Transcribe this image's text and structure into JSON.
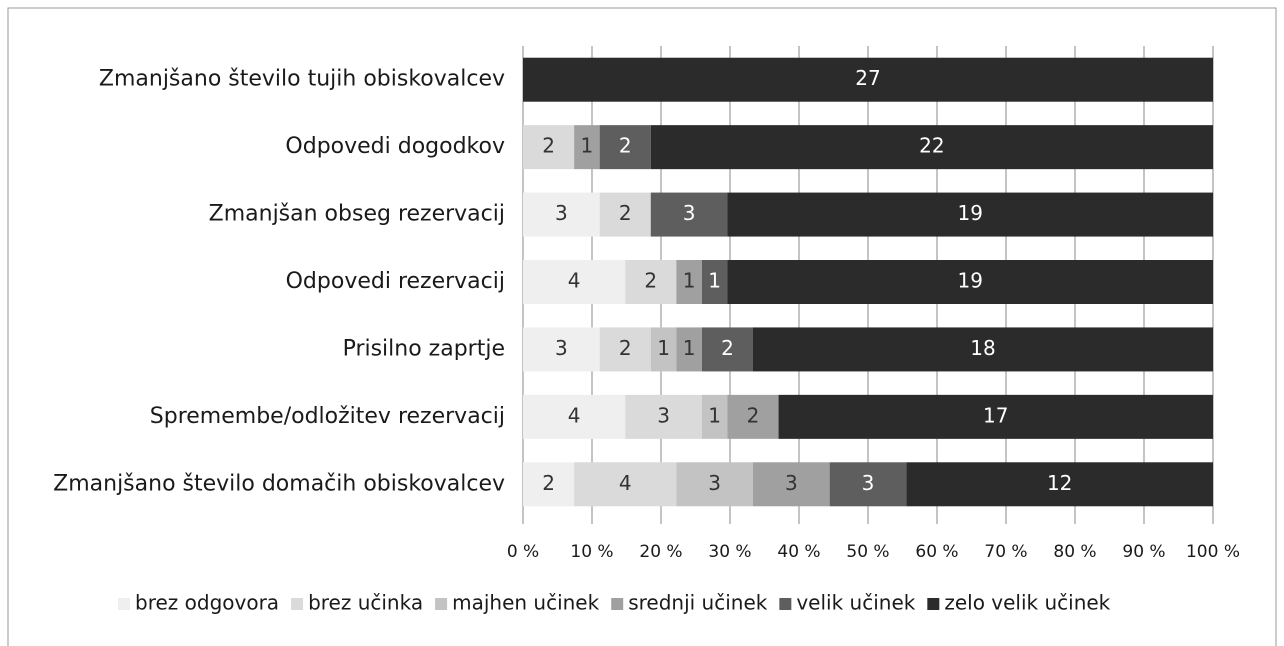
{
  "chart_data": {
    "type": "stacked-bar-100",
    "categories": [
      "Zmanjšano število tujih obiskovalcev",
      "Odpovedi dogodkov",
      "Zmanjšan obseg rezervacij",
      "Odpovedi rezervacij",
      "Prisilno zaprtje",
      "Spremembe/odložitev rezervacij",
      "Zmanjšano število domačih obiskovalcev"
    ],
    "series": [
      {
        "name": "brez odgovora",
        "color": "#efefef",
        "values": [
          0,
          0,
          3,
          4,
          3,
          4,
          2
        ]
      },
      {
        "name": "brez učinka",
        "color": "#dadada",
        "values": [
          0,
          2,
          2,
          2,
          2,
          3,
          4
        ]
      },
      {
        "name": "majhen učinek",
        "color": "#c3c3c3",
        "values": [
          0,
          0,
          0,
          0,
          1,
          1,
          3
        ]
      },
      {
        "name": "srednji učinek",
        "color": "#a0a0a0",
        "values": [
          0,
          1,
          0,
          1,
          1,
          2,
          3
        ]
      },
      {
        "name": "velik učinek",
        "color": "#5e5e5e",
        "values": [
          0,
          2,
          3,
          1,
          2,
          0,
          3
        ]
      },
      {
        "name": "zelo velik učinek",
        "color": "#2b2b2b",
        "values": [
          27,
          22,
          19,
          19,
          18,
          17,
          12
        ]
      }
    ],
    "xlim": [
      0,
      100
    ],
    "xticks": [
      {
        "value": 0,
        "label": "0 %"
      },
      {
        "value": 10,
        "label": "10 %"
      },
      {
        "value": 20,
        "label": "20 %"
      },
      {
        "value": 30,
        "label": "30 %"
      },
      {
        "value": 40,
        "label": "40 %"
      },
      {
        "value": 50,
        "label": "50 %"
      },
      {
        "value": 60,
        "label": "60 %"
      },
      {
        "value": 70,
        "label": "70 %"
      },
      {
        "value": 80,
        "label": "80 %"
      },
      {
        "value": 90,
        "label": "90 %"
      },
      {
        "value": 100,
        "label": "100 %"
      }
    ],
    "grid": true,
    "legend": "bottom"
  }
}
